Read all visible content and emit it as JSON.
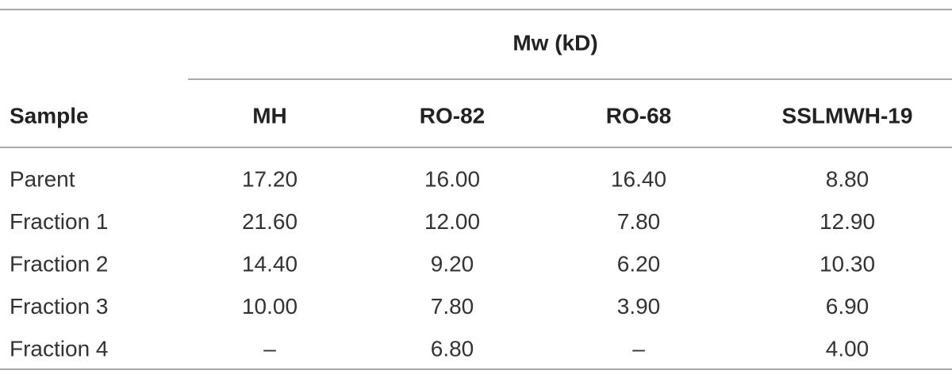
{
  "table": {
    "group_header": "Mw (kD)",
    "columns": [
      "Sample",
      "MH",
      "RO-82",
      "RO-68",
      "SSLMWH-19"
    ],
    "rows": [
      [
        "Parent",
        "17.20",
        "16.00",
        "16.40",
        "8.80"
      ],
      [
        "Fraction 1",
        "21.60",
        "12.00",
        "7.80",
        "12.90"
      ],
      [
        "Fraction 2",
        "14.40",
        "9.20",
        "6.20",
        "10.30"
      ],
      [
        "Fraction 3",
        "10.00",
        "7.80",
        "3.90",
        "6.90"
      ],
      [
        "Fraction 4",
        "–",
        "6.80",
        "–",
        "4.00"
      ]
    ]
  }
}
